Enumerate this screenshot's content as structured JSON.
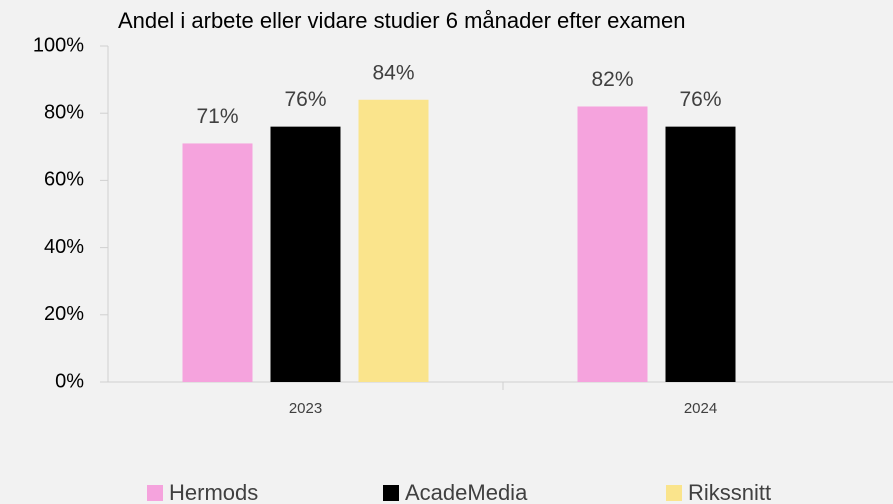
{
  "chart_data": {
    "type": "bar",
    "title": "Andel i arbete eller vidare studier 6 månader efter examen",
    "categories": [
      "2023",
      "2024"
    ],
    "series": [
      {
        "name": "Hermods",
        "color": "#f5a3dd",
        "values": [
          71,
          82
        ],
        "value_labels": [
          "71%",
          "82%"
        ]
      },
      {
        "name": "AcadeMedia",
        "color": "#000000",
        "values": [
          76,
          76
        ],
        "value_labels": [
          "76%",
          "76%"
        ]
      },
      {
        "name": "Rikssnitt",
        "color": "#fae48c",
        "values": [
          84,
          null
        ],
        "value_labels": [
          "84%",
          null
        ]
      }
    ],
    "ylim": [
      0,
      100
    ],
    "yticks": [
      {
        "value": 0,
        "label": "0%"
      },
      {
        "value": 20,
        "label": "20%"
      },
      {
        "value": 40,
        "label": "40%"
      },
      {
        "value": 60,
        "label": "60%"
      },
      {
        "value": 80,
        "label": "80%"
      },
      {
        "value": 100,
        "label": "100%"
      }
    ],
    "legend": "bottom"
  }
}
